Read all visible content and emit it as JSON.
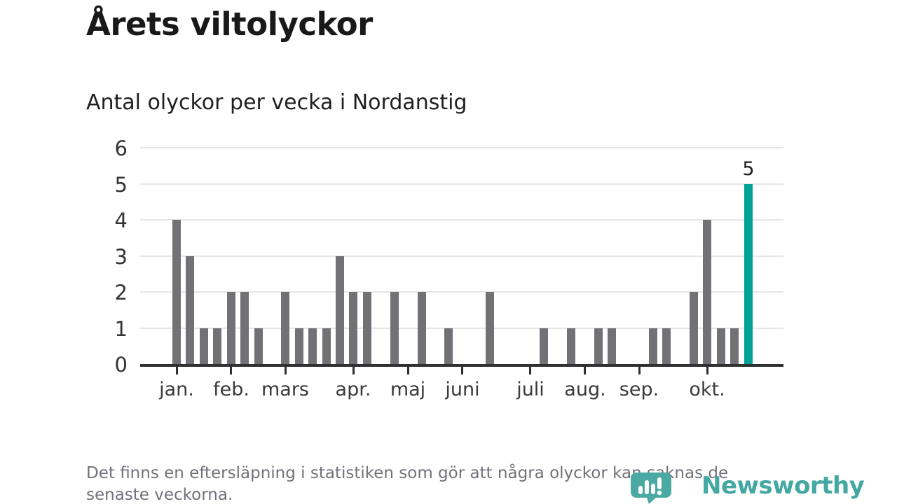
{
  "header": {
    "title": "Årets viltolyckor",
    "subtitle": "Antal olyckor per vecka i Nordanstig"
  },
  "footer": {
    "lines": [
      "Det finns en eftersläpning i statistiken som gör att några olyckor kan saknas de",
      "senaste veckorna."
    ]
  },
  "logo": {
    "brand": "Newsworthy",
    "icon": "newsworthy-bubble-chart-icon",
    "wordmark_color": "#43a7a2",
    "icon_color": "#4ba9a4"
  },
  "chart_data": {
    "type": "bar",
    "title": "Årets viltolyckor",
    "subtitle": "Antal olyckor per vecka i Nordanstig",
    "x_unit": "week",
    "values": [
      4,
      3,
      1,
      1,
      2,
      2,
      1,
      0,
      2,
      1,
      1,
      1,
      3,
      2,
      2,
      0,
      2,
      0,
      2,
      0,
      1,
      0,
      0,
      2,
      0,
      0,
      0,
      1,
      0,
      1,
      0,
      1,
      1,
      0,
      0,
      1,
      1,
      0,
      2,
      4,
      1,
      1,
      5
    ],
    "highlight_week": 43,
    "annotation": {
      "week": 43,
      "text": "5",
      "value": 5
    },
    "month_ticks": [
      {
        "label": "jan.",
        "week": 1
      },
      {
        "label": "feb.",
        "week": 5
      },
      {
        "label": "mars",
        "week": 9
      },
      {
        "label": "apr.",
        "week": 14
      },
      {
        "label": "maj",
        "week": 18
      },
      {
        "label": "juni",
        "week": 22
      },
      {
        "label": "juli",
        "week": 27
      },
      {
        "label": "aug.",
        "week": 31
      },
      {
        "label": "sep.",
        "week": 35
      },
      {
        "label": "okt.",
        "week": 40
      }
    ],
    "yticks": [
      0,
      1,
      2,
      3,
      4,
      5,
      6
    ],
    "ylim": [
      0,
      6
    ],
    "grid": "horizontal",
    "legend": "none",
    "colors": {
      "bar": "#717176",
      "highlight": "#00a29a",
      "grid": "#e6e6e6",
      "axis": "#303030"
    }
  }
}
